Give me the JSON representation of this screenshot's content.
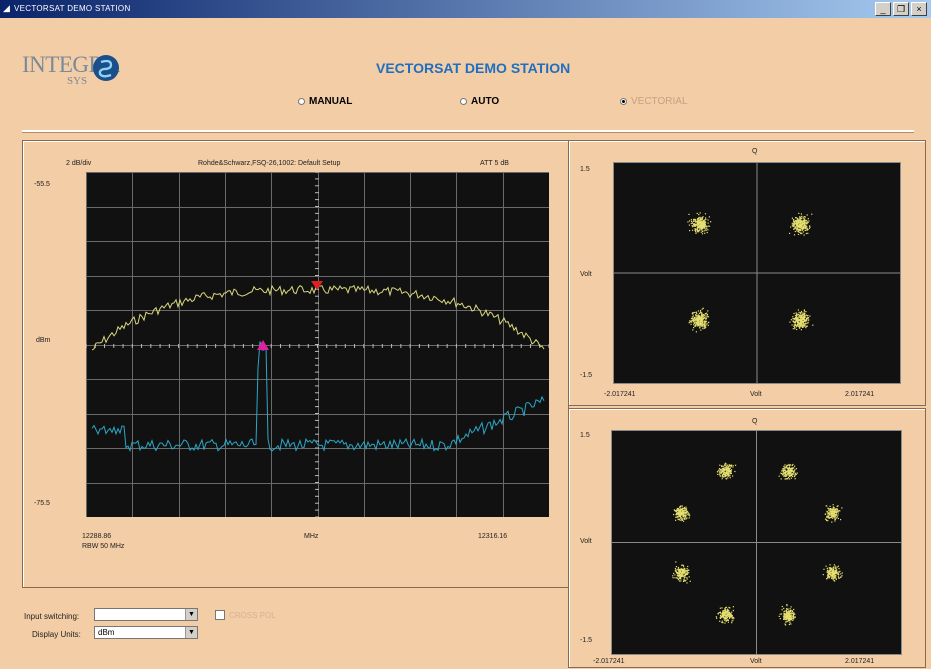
{
  "window": {
    "title": "VECTORSAT DEMO STATION",
    "controls": [
      "_",
      "❐",
      "×"
    ]
  },
  "logo": {
    "text": "INTEGRA",
    "subtext": "SYS"
  },
  "app_title": "VECTORSAT DEMO STATION",
  "modes": [
    {
      "label": "MANUAL",
      "selected": false,
      "enabled": true
    },
    {
      "label": "AUTO",
      "selected": false,
      "enabled": true
    },
    {
      "label": "VECTORIAL",
      "selected": true,
      "enabled": false
    }
  ],
  "spectrum": {
    "scale": "2 dB/div",
    "instrument": "Rohde&Schwarz,FSQ-26,1002: Default Setup",
    "att": "ATT 5 dB",
    "y_top": "-55.5",
    "y_bottom": "-75.5",
    "y_unit": "dBm",
    "x_start": "12288.86",
    "x_unit": "MHz",
    "x_end": "12316.16",
    "rbw": "RBW 50 MHz"
  },
  "constellation_qpsk": {
    "q_label": "Q",
    "y_top": "1.5",
    "y_bottom": "-1.5",
    "y_label": "Volt",
    "x_min": "-2.017241",
    "x_label": "Volt",
    "x_max": "2.017241"
  },
  "constellation_8psk": {
    "q_label": "Q",
    "y_top": "1.5",
    "y_bottom": "-1.5",
    "y_label": "Volt",
    "x_min": "-2.017241",
    "x_label": "Volt",
    "x_max": "2.017241"
  },
  "controls": {
    "input_switching_label": "Input switching:",
    "input_switching_value": "",
    "cross_pol_label": "CROSS POL",
    "display_units_label": "Display Units:",
    "display_units_value": "dBm"
  },
  "colors": {
    "trace_upper": "#d8d880",
    "trace_lower": "#2aa8c8",
    "marker_top": "#e02020",
    "marker_peak": "#e020a0",
    "scatter": "#e6e070"
  }
}
